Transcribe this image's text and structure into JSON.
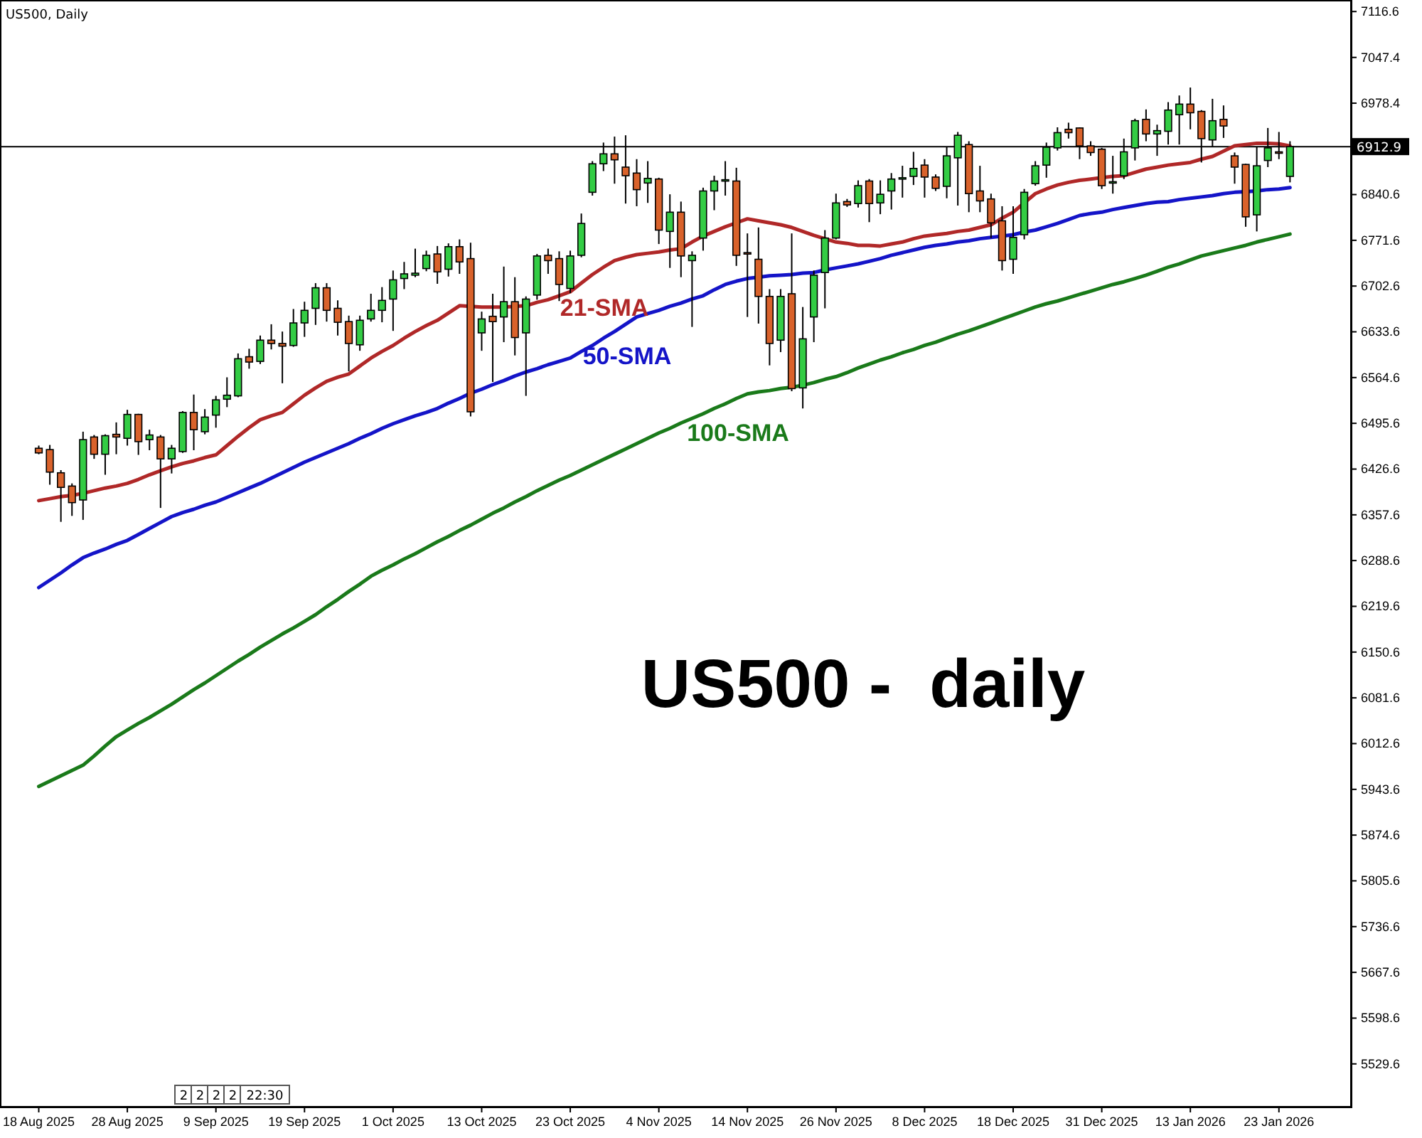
{
  "chart_data": {
    "type": "candlestick",
    "title": "US500, Daily",
    "annotations": [
      "US500 -  daily",
      "2",
      "2",
      "2",
      "2",
      "22:30"
    ],
    "categories": [
      "18 Aug 2025",
      null,
      null,
      null,
      null,
      null,
      null,
      null,
      "28 Aug 2025",
      null,
      null,
      null,
      null,
      null,
      null,
      null,
      "9 Sep 2025",
      null,
      null,
      null,
      null,
      null,
      null,
      null,
      "19 Sep 2025",
      null,
      null,
      null,
      null,
      null,
      null,
      null,
      "1 Oct 2025",
      null,
      null,
      null,
      null,
      null,
      null,
      null,
      "13 Oct 2025",
      null,
      null,
      null,
      null,
      null,
      null,
      null,
      "23 Oct 2025",
      null,
      null,
      null,
      null,
      null,
      null,
      null,
      "4 Nov 2025",
      null,
      null,
      null,
      null,
      null,
      null,
      null,
      "14 Nov 2025",
      null,
      null,
      null,
      null,
      null,
      null,
      null,
      "26 Nov 2025",
      null,
      null,
      null,
      null,
      null,
      null,
      null,
      "8 Dec 2025",
      null,
      null,
      null,
      null,
      null,
      null,
      null,
      "18 Dec 2025",
      null,
      null,
      null,
      null,
      null,
      null,
      null,
      "31 Dec 2025",
      null,
      null,
      null,
      null,
      null,
      null,
      null,
      "13 Jan 2026",
      null,
      null,
      null,
      null,
      null,
      null,
      null,
      "23 Jan 2026",
      null
    ],
    "ohlc": [
      [
        6458,
        6462,
        6449,
        6451
      ],
      [
        6456,
        6463,
        6403,
        6422
      ],
      [
        6421,
        6425,
        6347,
        6399
      ],
      [
        6401,
        6405,
        6356,
        6376
      ],
      [
        6380,
        6483,
        6350,
        6471
      ],
      [
        6475,
        6478,
        6442,
        6449
      ],
      [
        6449,
        6479,
        6418,
        6477
      ],
      [
        6479,
        6497,
        6449,
        6475
      ],
      [
        6473,
        6516,
        6462,
        6509
      ],
      [
        6509,
        6510,
        6448,
        6468
      ],
      [
        6471,
        6486,
        6455,
        6478
      ],
      [
        6475,
        6478,
        6368,
        6442
      ],
      [
        6442,
        6463,
        6420,
        6458
      ],
      [
        6453,
        6514,
        6451,
        6512
      ],
      [
        6512,
        6539,
        6455,
        6486
      ],
      [
        6483,
        6517,
        6479,
        6505
      ],
      [
        6508,
        6537,
        6489,
        6531
      ],
      [
        6532,
        6565,
        6520,
        6538
      ],
      [
        6537,
        6601,
        6535,
        6593
      ],
      [
        6596,
        6608,
        6578,
        6588
      ],
      [
        6589,
        6628,
        6585,
        6621
      ],
      [
        6621,
        6645,
        6607,
        6616
      ],
      [
        6616,
        6634,
        6556,
        6612
      ],
      [
        6613,
        6668,
        6611,
        6647
      ],
      [
        6647,
        6679,
        6626,
        6666
      ],
      [
        6669,
        6707,
        6644,
        6700
      ],
      [
        6700,
        6707,
        6649,
        6666
      ],
      [
        6669,
        6681,
        6628,
        6648
      ],
      [
        6649,
        6658,
        6574,
        6616
      ],
      [
        6614,
        6658,
        6605,
        6651
      ],
      [
        6653,
        6691,
        6649,
        6666
      ],
      [
        6666,
        6701,
        6648,
        6681
      ],
      [
        6683,
        6726,
        6635,
        6712
      ],
      [
        6714,
        6739,
        6698,
        6721
      ],
      [
        6719,
        6759,
        6716,
        6722
      ],
      [
        6729,
        6756,
        6725,
        6749
      ],
      [
        6751,
        6763,
        6706,
        6724
      ],
      [
        6728,
        6767,
        6717,
        6762
      ],
      [
        6762,
        6773,
        6721,
        6739
      ],
      [
        6744,
        6768,
        6506,
        6513
      ],
      [
        6632,
        6664,
        6605,
        6653
      ],
      [
        6657,
        6691,
        6558,
        6649
      ],
      [
        6656,
        6732,
        6618,
        6679
      ],
      [
        6679,
        6716,
        6598,
        6625
      ],
      [
        6632,
        6687,
        6537,
        6683
      ],
      [
        6689,
        6751,
        6682,
        6748
      ],
      [
        6749,
        6759,
        6721,
        6741
      ],
      [
        6744,
        6755,
        6680,
        6705
      ],
      [
        6699,
        6756,
        6692,
        6748
      ],
      [
        6749,
        6812,
        6746,
        6797
      ],
      [
        6844,
        6891,
        6839,
        6887
      ],
      [
        6887,
        6919,
        6876,
        6902
      ],
      [
        6902,
        6928,
        6857,
        6893
      ],
      [
        6882,
        6930,
        6827,
        6869
      ],
      [
        6873,
        6894,
        6823,
        6848
      ],
      [
        6858,
        6891,
        6828,
        6865
      ],
      [
        6864,
        6866,
        6766,
        6787
      ],
      [
        6785,
        6841,
        6730,
        6814
      ],
      [
        6814,
        6830,
        6716,
        6748
      ],
      [
        6741,
        6755,
        6641,
        6749
      ],
      [
        6775,
        6851,
        6756,
        6846
      ],
      [
        6846,
        6869,
        6817,
        6861
      ],
      [
        6861,
        6891,
        6839,
        6863
      ],
      [
        6861,
        6881,
        6733,
        6749
      ],
      [
        6753,
        6782,
        6656,
        6752
      ],
      [
        6743,
        6791,
        6646,
        6687
      ],
      [
        6687,
        6698,
        6583,
        6616
      ],
      [
        6621,
        6698,
        6603,
        6687
      ],
      [
        6691,
        6782,
        6544,
        6548
      ],
      [
        6549,
        6671,
        6518,
        6623
      ],
      [
        6656,
        6726,
        6618,
        6719
      ],
      [
        6723,
        6787,
        6669,
        6775
      ],
      [
        6775,
        6842,
        6773,
        6828
      ],
      [
        6830,
        6834,
        6822,
        6825
      ],
      [
        6827,
        6862,
        6821,
        6854
      ],
      [
        6861,
        6864,
        6799,
        6827
      ],
      [
        6828,
        6862,
        6811,
        6841
      ],
      [
        6846,
        6873,
        6818,
        6864
      ],
      [
        6864,
        6884,
        6836,
        6866
      ],
      [
        6868,
        6905,
        6855,
        6880
      ],
      [
        6885,
        6894,
        6836,
        6867
      ],
      [
        6867,
        6871,
        6846,
        6850
      ],
      [
        6853,
        6912,
        6835,
        6899
      ],
      [
        6896,
        6935,
        6824,
        6930
      ],
      [
        6916,
        6921,
        6814,
        6842
      ],
      [
        6846,
        6884,
        6814,
        6831
      ],
      [
        6834,
        6842,
        6775,
        6798
      ],
      [
        6801,
        6823,
        6726,
        6741
      ],
      [
        6743,
        6823,
        6721,
        6776
      ],
      [
        6780,
        6849,
        6773,
        6844
      ],
      [
        6857,
        6891,
        6854,
        6884
      ],
      [
        6885,
        6919,
        6866,
        6912
      ],
      [
        6911,
        6942,
        6907,
        6934
      ],
      [
        6939,
        6949,
        6925,
        6934
      ],
      [
        6941,
        6942,
        6894,
        6914
      ],
      [
        6914,
        6921,
        6899,
        6904
      ],
      [
        6909,
        6911,
        6849,
        6854
      ],
      [
        6858,
        6899,
        6842,
        6860
      ],
      [
        6869,
        6925,
        6864,
        6905
      ],
      [
        6911,
        6955,
        6892,
        6952
      ],
      [
        6954,
        6969,
        6921,
        6932
      ],
      [
        6932,
        6946,
        6899,
        6937
      ],
      [
        6936,
        6980,
        6916,
        6968
      ],
      [
        6961,
        6990,
        6916,
        6977
      ],
      [
        6977,
        7002,
        6939,
        6964
      ],
      [
        6966,
        6968,
        6889,
        6925
      ],
      [
        6923,
        6985,
        6912,
        6952
      ],
      [
        6954,
        6975,
        6926,
        6944
      ],
      [
        6899,
        6904,
        6857,
        6882
      ],
      [
        6886,
        6887,
        6792,
        6807
      ],
      [
        6810,
        6912,
        6785,
        6884
      ],
      [
        6892,
        6941,
        6882,
        6911
      ],
      [
        6905,
        6935,
        6894,
        6904
      ],
      [
        6868,
        6921,
        6859,
        6912.9
      ]
    ],
    "series": [
      {
        "type": "line",
        "name": "21-SMA",
        "color": "#b02828",
        "values": [
          6379,
          6382,
          6385,
          6387,
          6390,
          6394,
          6398,
          6401,
          6405,
          6411,
          6418,
          6424,
          6430,
          6435,
          6439,
          6444,
          6448,
          6462,
          6476,
          6489,
          6501,
          6507,
          6512,
          6525,
          6538,
          6549,
          6559,
          6565,
          6570,
          6582,
          6594,
          6604,
          6613,
          6624,
          6634,
          6643,
          6651,
          6662,
          6673,
          6672,
          6671,
          6671,
          6671,
          6672,
          6673,
          6678,
          6682,
          6688,
          6694,
          6707,
          6720,
          6731,
          6741,
          6746,
          6750,
          6752,
          6754,
          6757,
          6759,
          6769,
          6778,
          6785,
          6792,
          6798,
          6804,
          6801,
          6798,
          6795,
          6791,
          6785,
          6779,
          6774,
          6769,
          6767,
          6764,
          6764,
          6763,
          6766,
          6769,
          6774,
          6778,
          6780,
          6782,
          6785,
          6787,
          6791,
          6795,
          6805,
          6814,
          6828,
          6842,
          6849,
          6855,
          6859,
          6862,
          6864,
          6866,
          6868,
          6869,
          6874,
          6879,
          6882,
          6885,
          6887,
          6889,
          6894,
          6898,
          6906,
          6914,
          6916,
          6918,
          6918,
          6917,
          6914
        ]
      },
      {
        "type": "line",
        "name": "50-SMA",
        "color": "#1414c8",
        "values": [
          6248,
          6259,
          6270,
          6282,
          6293,
          6300,
          6306,
          6313,
          6319,
          6328,
          6337,
          6346,
          6355,
          6361,
          6366,
          6372,
          6377,
          6384,
          6391,
          6398,
          6405,
          6413,
          6421,
          6429,
          6437,
          6444,
          6451,
          6458,
          6465,
          6473,
          6480,
          6488,
          6495,
          6501,
          6507,
          6512,
          6518,
          6526,
          6533,
          6541,
          6547,
          6554,
          6560,
          6567,
          6573,
          6578,
          6584,
          6589,
          6594,
          6604,
          6613,
          6624,
          6634,
          6645,
          6656,
          6661,
          6666,
          6672,
          6677,
          6683,
          6688,
          6697,
          6705,
          6710,
          6714,
          6716,
          6718,
          6719,
          6720,
          6722,
          6723,
          6727,
          6730,
          6733,
          6736,
          6740,
          6744,
          6749,
          6753,
          6757,
          6761,
          6764,
          6766,
          6769,
          6771,
          6774,
          6776,
          6778,
          6780,
          6784,
          6787,
          6792,
          6797,
          6803,
          6809,
          6812,
          6814,
          6818,
          6821,
          6824,
          6827,
          6829,
          6830,
          6833,
          6835,
          6837,
          6839,
          6842,
          6844,
          6845,
          6846,
          6848,
          6849,
          6851
        ]
      },
      {
        "type": "line",
        "name": "100-SMA",
        "color": "#1a7a1a",
        "values": [
          5948,
          5956,
          5964,
          5972,
          5980,
          5994,
          6009,
          6023,
          6033,
          6043,
          6052,
          6062,
          6072,
          6083,
          6094,
          6104,
          6115,
          6126,
          6137,
          6147,
          6158,
          6168,
          6178,
          6187,
          6197,
          6207,
          6219,
          6230,
          6242,
          6253,
          6265,
          6274,
          6282,
          6291,
          6299,
          6308,
          6317,
          6325,
          6334,
          6342,
          6351,
          6360,
          6368,
          6377,
          6385,
          6394,
          6402,
          6410,
          6417,
          6425,
          6433,
          6441,
          6449,
          6457,
          6465,
          6473,
          6481,
          6488,
          6496,
          6503,
          6510,
          6518,
          6525,
          6533,
          6540,
          6543,
          6545,
          6548,
          6550,
          6553,
          6557,
          6562,
          6566,
          6572,
          6579,
          6585,
          6591,
          6596,
          6602,
          6607,
          6613,
          6618,
          6624,
          6630,
          6635,
          6641,
          6647,
          6653,
          6659,
          6665,
          6671,
          6676,
          6680,
          6685,
          6690,
          6695,
          6700,
          6705,
          6709,
          6714,
          6719,
          6725,
          6731,
          6736,
          6742,
          6748,
          6752,
          6756,
          6760,
          6764,
          6769,
          6773,
          6777,
          6781
        ]
      }
    ],
    "ylim": [
      5465,
      7134
    ],
    "yticks": [
      7116.6,
      7047.4,
      6978.4,
      6840.6,
      6771.6,
      6702.6,
      6633.6,
      6564.6,
      6495.6,
      6426.6,
      6357.6,
      6288.6,
      6219.6,
      6150.6,
      6081.6,
      6012.6,
      5943.6,
      5874.6,
      5805.6,
      5736.6,
      5667.6,
      5598.6,
      5529.6
    ],
    "ref_lines": [
      {
        "axis": "y",
        "value": 6912.9,
        "label": "6912.9",
        "color": "#000000"
      }
    ]
  }
}
